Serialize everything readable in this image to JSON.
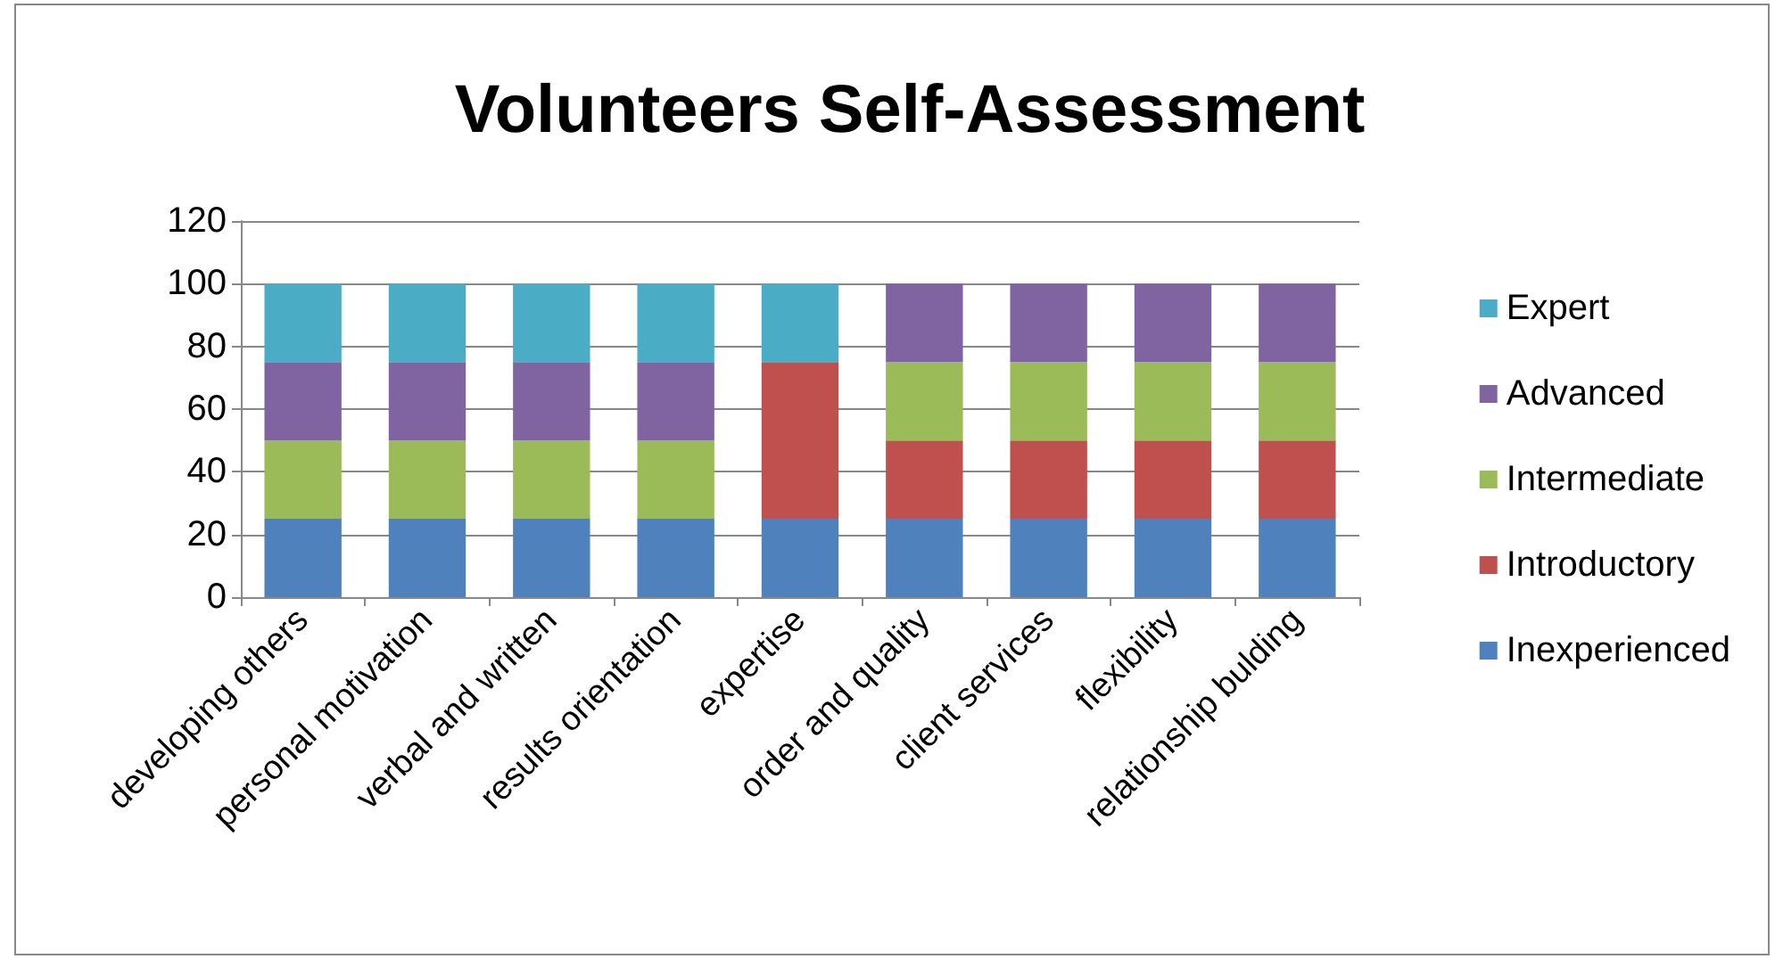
{
  "chart_data": {
    "type": "bar",
    "title": "Volunteers Self-Assessment",
    "stacked": true,
    "categories": [
      "developing others",
      "personal motivation",
      "verbal and written",
      "results orientation",
      "expertise",
      "order and quality",
      "client services",
      "flexibility",
      "relationship bulding"
    ],
    "series": [
      {
        "name": "Inexperienced",
        "color": "#4f81bd",
        "values": [
          25,
          25,
          25,
          25,
          25,
          25,
          25,
          25,
          25
        ]
      },
      {
        "name": "Introductory",
        "color": "#c0504d",
        "values": [
          0,
          0,
          0,
          0,
          50,
          25,
          25,
          25,
          25
        ]
      },
      {
        "name": "Intermediate",
        "color": "#9bbb59",
        "values": [
          25,
          25,
          25,
          25,
          0,
          25,
          25,
          25,
          25
        ]
      },
      {
        "name": "Advanced",
        "color": "#8064a2",
        "values": [
          25,
          25,
          25,
          25,
          0,
          25,
          25,
          25,
          25
        ]
      },
      {
        "name": "Expert",
        "color": "#4bacc6",
        "values": [
          25,
          25,
          25,
          25,
          25,
          0,
          0,
          0,
          0
        ]
      }
    ],
    "ylim": [
      0,
      120
    ],
    "yticks": [
      0,
      20,
      40,
      60,
      80,
      100,
      120
    ],
    "grid": "y",
    "legend": "right"
  }
}
